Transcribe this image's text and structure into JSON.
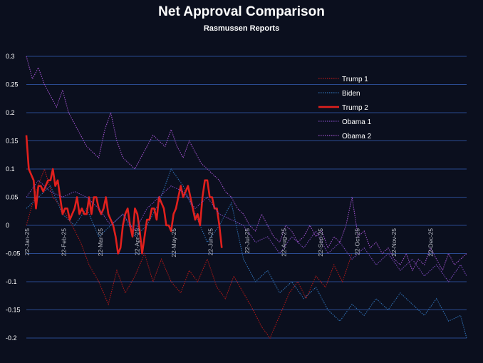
{
  "chart_data": {
    "type": "line",
    "title": "Net Approval Comparison",
    "subtitle": "Rasmussen Reports",
    "xlabel": "",
    "ylabel": "",
    "ylim": [
      -0.2,
      0.3
    ],
    "yticks": [
      0.3,
      0.25,
      0.2,
      0.15,
      0.1,
      0.05,
      0,
      -0.05,
      -0.1,
      -0.15,
      -0.2
    ],
    "xticks": [
      "22-Jan-25",
      "22-Feb-25",
      "22-Mar-25",
      "22-Apr-25",
      "22-May-25",
      "22-Jun-25",
      "22-Jul-25",
      "22-Aug-25",
      "22-Sep-25",
      "22-Oct-25",
      "22-Nov-25",
      "22-Dec-25"
    ],
    "x_range": [
      0,
      365
    ],
    "grid": "horizontal",
    "legend_position": "right",
    "series": [
      {
        "name": "Trump 1",
        "color": "#b01818",
        "style": "dotted",
        "x": [
          0,
          8,
          15,
          22,
          30,
          38,
          45,
          52,
          60,
          68,
          75,
          82,
          90,
          98,
          105,
          112,
          120,
          128,
          135,
          142,
          150,
          158,
          165,
          172,
          180,
          188,
          195,
          202,
          210,
          218,
          225,
          232,
          240,
          248,
          255,
          262,
          270
        ],
        "values": [
          0.0,
          0.06,
          0.1,
          0.05,
          0.03,
          0.0,
          -0.03,
          -0.07,
          -0.1,
          -0.14,
          -0.08,
          -0.12,
          -0.09,
          -0.05,
          -0.1,
          -0.06,
          -0.1,
          -0.12,
          -0.08,
          -0.1,
          -0.06,
          -0.11,
          -0.13,
          -0.09,
          -0.12,
          -0.15,
          -0.18,
          -0.2,
          -0.16,
          -0.12,
          -0.1,
          -0.13,
          -0.09,
          -0.11,
          -0.07,
          -0.1,
          -0.05
        ]
      },
      {
        "name": "Biden",
        "color": "#2f6fb2",
        "style": "dotted",
        "x": [
          0,
          10,
          20,
          30,
          40,
          50,
          60,
          70,
          80,
          90,
          100,
          110,
          120,
          130,
          140,
          150,
          160,
          170,
          180,
          190,
          200,
          210,
          220,
          230,
          240,
          250,
          260,
          270,
          280,
          290,
          300,
          310,
          320,
          330,
          340,
          350,
          360,
          365
        ],
        "values": [
          0.03,
          0.05,
          0.07,
          0.02,
          0.0,
          0.03,
          -0.02,
          0.0,
          0.02,
          -0.02,
          0.0,
          0.04,
          0.1,
          0.07,
          0.02,
          -0.03,
          0.0,
          0.04,
          -0.06,
          -0.1,
          -0.08,
          -0.12,
          -0.1,
          -0.13,
          -0.11,
          -0.15,
          -0.17,
          -0.14,
          -0.16,
          -0.13,
          -0.15,
          -0.12,
          -0.14,
          -0.16,
          -0.13,
          -0.17,
          -0.16,
          -0.2
        ]
      },
      {
        "name": "Trump 2",
        "color": "#e0201d",
        "style": "solid",
        "x": [
          0,
          2,
          4,
          6,
          8,
          10,
          12,
          14,
          16,
          18,
          20,
          22,
          24,
          26,
          28,
          30,
          32,
          34,
          36,
          38,
          40,
          42,
          44,
          46,
          48,
          50,
          52,
          54,
          56,
          58,
          60,
          62,
          64,
          66,
          68,
          70,
          72,
          74,
          76,
          78,
          80,
          82,
          84,
          86,
          88,
          90,
          92,
          94,
          96,
          98,
          100,
          102,
          104,
          106,
          108,
          110,
          112,
          114,
          116,
          118,
          120,
          122,
          124,
          126,
          128,
          130,
          132,
          134,
          136,
          138,
          140,
          142,
          144,
          146,
          148,
          150,
          152,
          154,
          156,
          158,
          160,
          162
        ],
        "values": [
          0.16,
          0.1,
          0.09,
          0.08,
          0.03,
          0.07,
          0.07,
          0.06,
          0.07,
          0.08,
          0.08,
          0.1,
          0.07,
          0.08,
          0.05,
          0.02,
          0.03,
          0.03,
          0.01,
          0.02,
          0.03,
          0.05,
          0.02,
          0.03,
          0.02,
          0.02,
          0.05,
          0.02,
          0.05,
          0.05,
          0.03,
          0.02,
          0.03,
          0.05,
          0.02,
          0.01,
          0.0,
          -0.02,
          -0.05,
          -0.04,
          0.0,
          0.02,
          0.03,
          0.0,
          -0.02,
          0.03,
          0.02,
          -0.01,
          -0.05,
          -0.02,
          0.01,
          0.01,
          0.03,
          0.03,
          0.01,
          0.05,
          0.04,
          0.03,
          0.0,
          0.0,
          -0.01,
          0.02,
          0.03,
          0.05,
          0.07,
          0.05,
          0.06,
          0.07,
          0.05,
          0.03,
          0.01,
          0.02,
          0.0,
          0.05,
          0.08,
          0.08,
          0.05,
          0.05,
          0.03,
          0.03,
          0.0,
          -0.04
        ]
      },
      {
        "name": "Obama 1",
        "color": "#7a47b8",
        "style": "dotted",
        "x": [
          0,
          10,
          20,
          30,
          40,
          50,
          60,
          70,
          80,
          90,
          100,
          110,
          120,
          130,
          140,
          150,
          160,
          170,
          180,
          190,
          200,
          210,
          220,
          230,
          240,
          250,
          260,
          270,
          280,
          290,
          300,
          310,
          320,
          330,
          340,
          350,
          360,
          365
        ],
        "values": [
          0.05,
          0.08,
          0.06,
          0.05,
          0.06,
          0.05,
          0.03,
          0.0,
          0.02,
          -0.01,
          0.03,
          0.05,
          0.07,
          0.06,
          0.03,
          0.05,
          0.02,
          0.01,
          0.0,
          -0.03,
          -0.02,
          -0.05,
          -0.02,
          -0.04,
          -0.01,
          -0.05,
          -0.03,
          -0.06,
          -0.04,
          -0.07,
          -0.05,
          -0.08,
          -0.06,
          -0.09,
          -0.07,
          -0.1,
          -0.07,
          -0.09
        ]
      },
      {
        "name": "Obama 2",
        "color": "#9b50c8",
        "style": "dotted",
        "x": [
          0,
          5,
          10,
          15,
          20,
          25,
          30,
          35,
          40,
          45,
          50,
          55,
          60,
          65,
          70,
          75,
          80,
          85,
          90,
          95,
          100,
          105,
          110,
          115,
          120,
          125,
          130,
          135,
          140,
          145,
          150,
          155,
          160,
          165,
          170,
          175,
          180,
          185,
          190,
          195,
          200,
          205,
          210,
          215,
          220,
          225,
          230,
          235,
          240,
          245,
          250,
          255,
          260,
          265,
          270,
          275,
          280,
          285,
          290,
          295,
          300,
          305,
          310,
          315,
          320,
          325,
          330,
          335,
          340,
          345,
          350,
          355,
          360,
          365
        ],
        "values": [
          0.3,
          0.26,
          0.28,
          0.25,
          0.23,
          0.21,
          0.24,
          0.2,
          0.18,
          0.16,
          0.14,
          0.13,
          0.12,
          0.17,
          0.2,
          0.15,
          0.12,
          0.11,
          0.1,
          0.12,
          0.14,
          0.16,
          0.15,
          0.14,
          0.17,
          0.14,
          0.12,
          0.15,
          0.13,
          0.11,
          0.1,
          0.09,
          0.08,
          0.06,
          0.05,
          0.03,
          0.02,
          0.0,
          -0.01,
          0.02,
          0.0,
          -0.02,
          -0.03,
          0.0,
          -0.01,
          -0.03,
          -0.02,
          0.0,
          -0.02,
          -0.01,
          -0.04,
          -0.02,
          -0.03,
          0.0,
          0.05,
          -0.02,
          -0.01,
          -0.04,
          -0.03,
          -0.05,
          -0.04,
          -0.06,
          -0.07,
          -0.05,
          -0.08,
          -0.06,
          -0.07,
          -0.04,
          -0.06,
          -0.08,
          -0.05,
          -0.07,
          -0.06,
          -0.05
        ]
      }
    ]
  }
}
